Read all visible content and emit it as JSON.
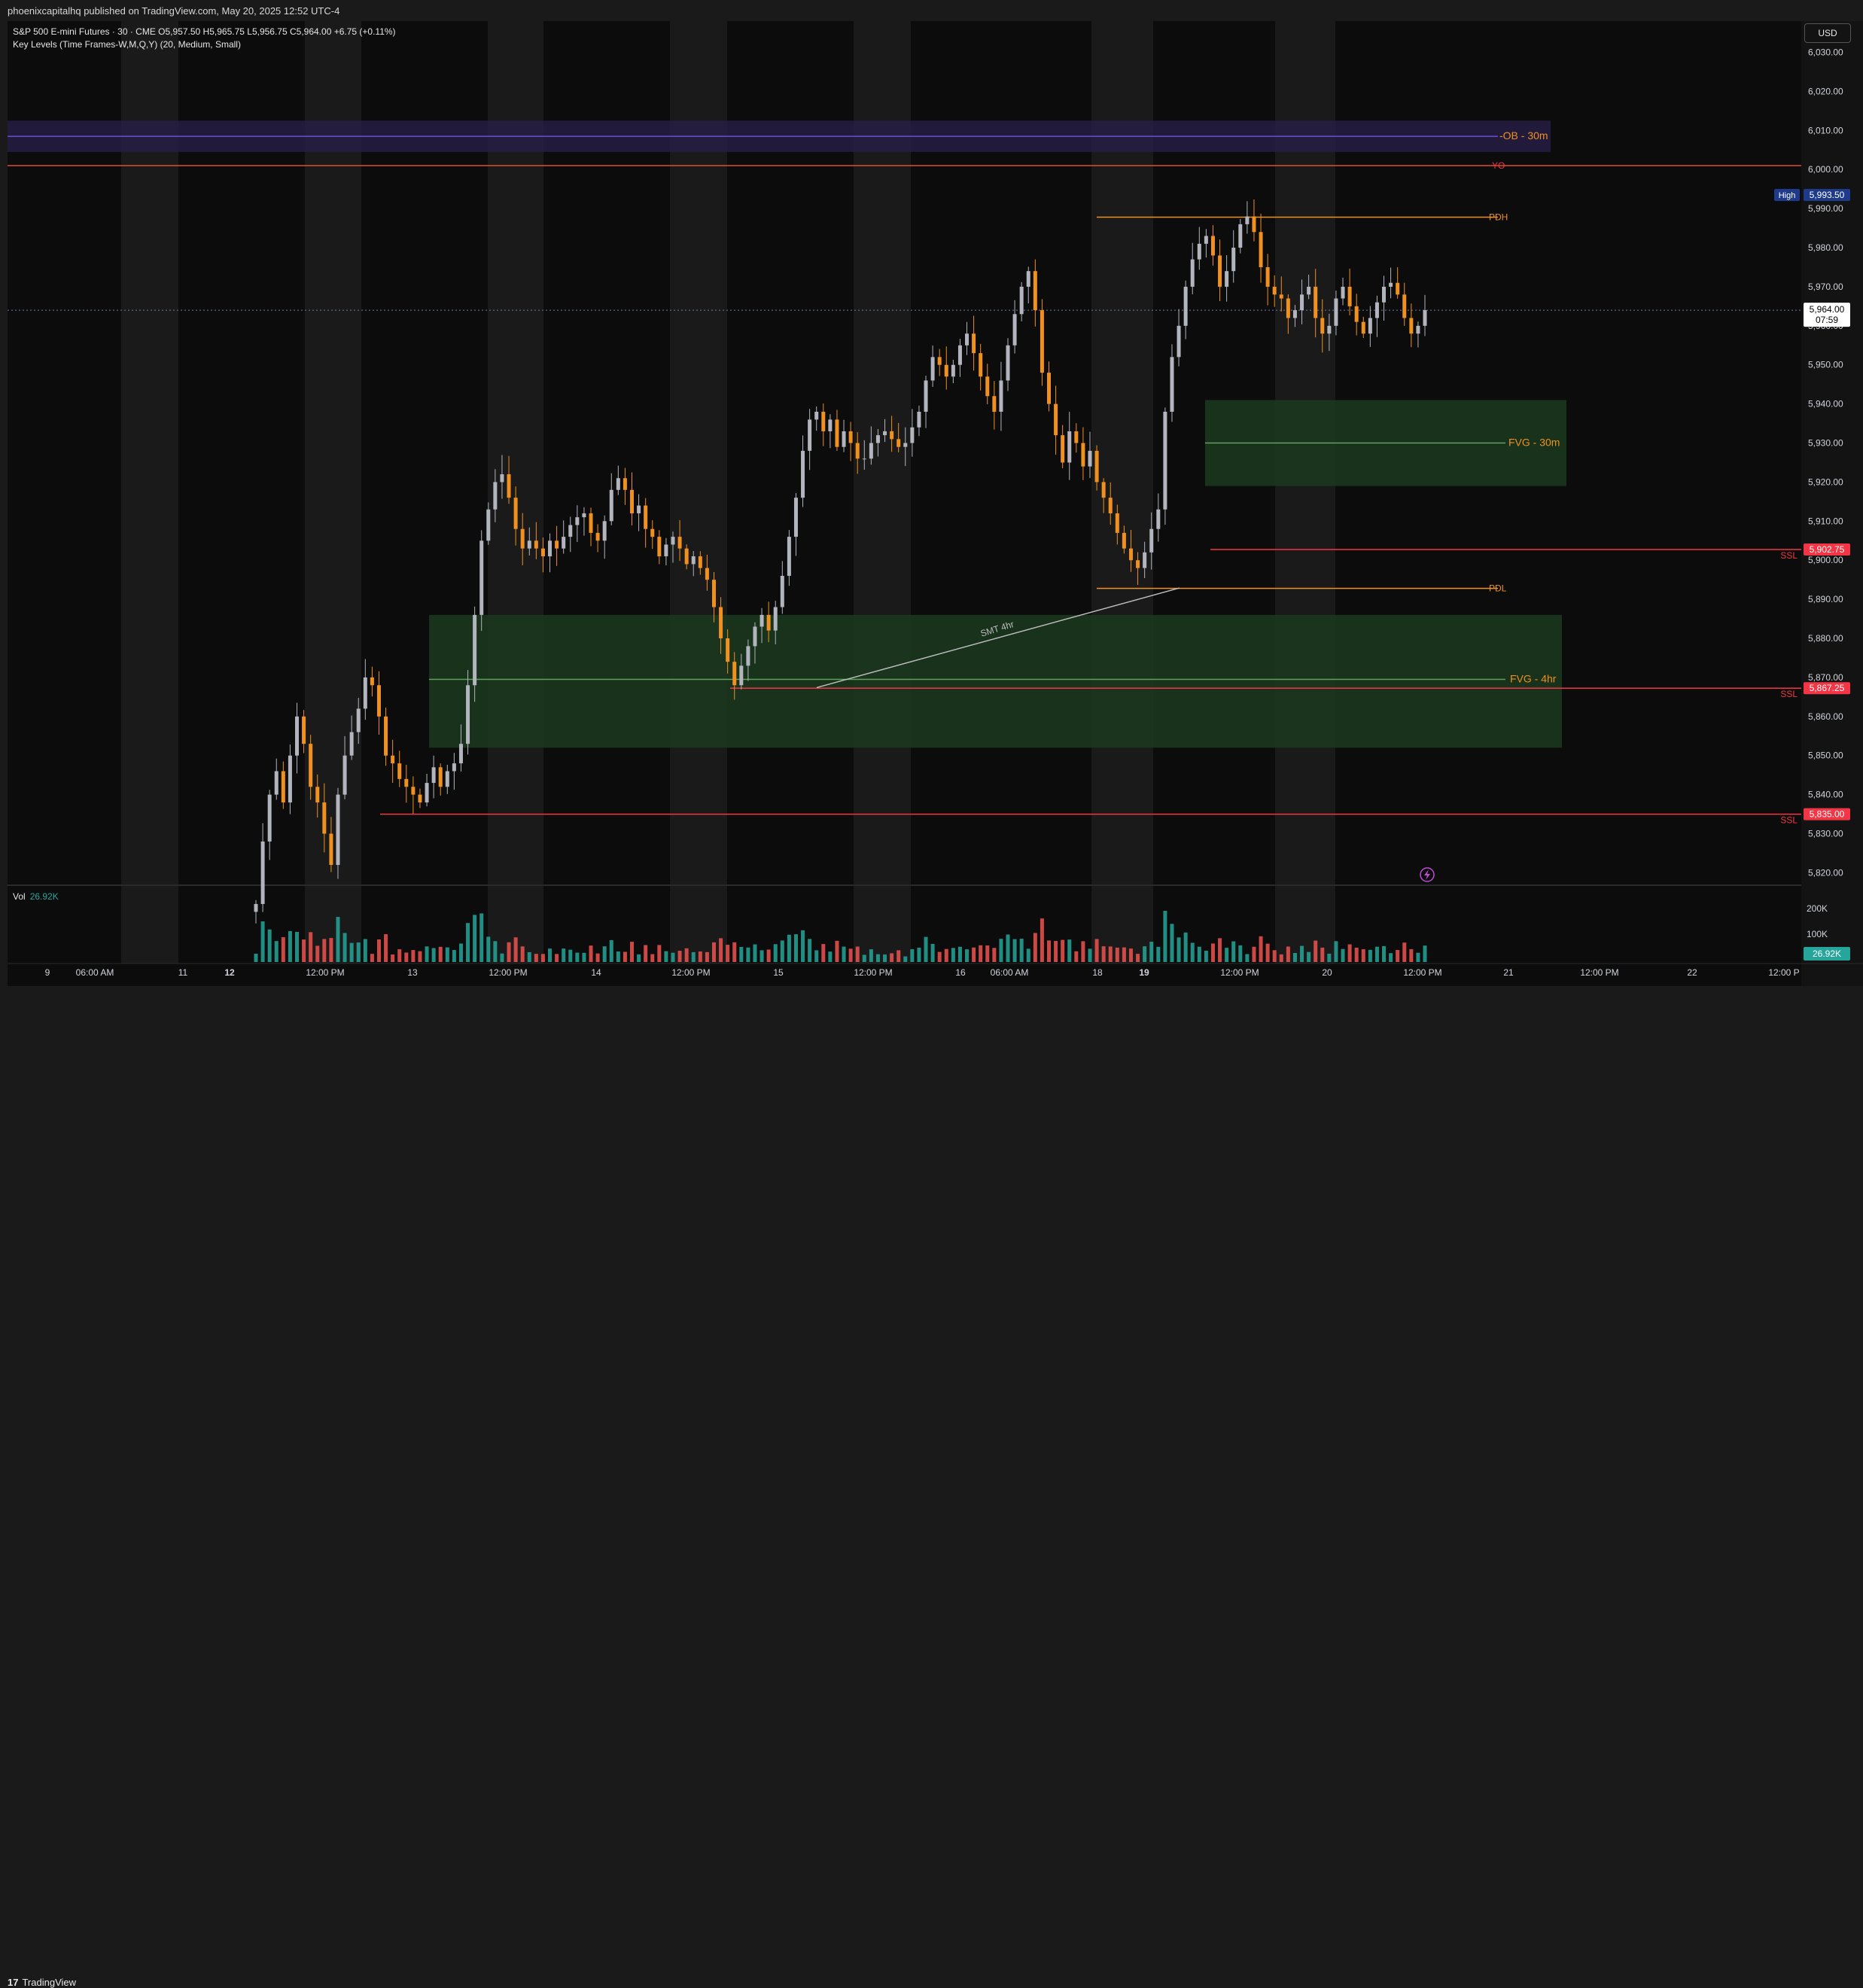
{
  "header": {
    "published_text": "phoenixcapitalhq published on TradingView.com, May 20, 2025 12:52 UTC-4"
  },
  "legend": {
    "line1": "S&P 500 E-mini Futures · 30 · CME  O5,957.50  H5,965.75  L5,956.75  C5,964.00  +6.75 (+0.11%)",
    "line2": "Key Levels (Time Frames-W,M,Q,Y) (20, Medium, Small)"
  },
  "currency_button": "USD",
  "volume": {
    "label": "Vol",
    "value": "26.92K",
    "axis_ticks": [
      "200K",
      "100K"
    ],
    "last_badge": "26.92K"
  },
  "brand": {
    "logo": "17",
    "name": "TradingView"
  },
  "colors": {
    "up_candle": "#b2b5be",
    "down_candle": "#f0901e",
    "vol_up": "#26a69a",
    "vol_down": "#ef5350",
    "fvg_zone": "#1b3a1f",
    "ob_zone": "#2a1f4a",
    "ssl": "#f23645",
    "orange_level": "#f0901e"
  },
  "chart_data": {
    "type": "candlestick",
    "instrument": "S&P 500 E-mini Futures",
    "timeframe": "30",
    "exchange": "CME",
    "ohlc_last": {
      "open": 5957.5,
      "high": 5965.75,
      "low": 5956.75,
      "close": 5964.0,
      "change": "+6.75 (+0.11%)"
    },
    "y_ticks": [
      6030,
      6020,
      6010,
      6000,
      5990,
      5980,
      5970,
      5960,
      5950,
      5940,
      5930,
      5920,
      5910,
      5900,
      5890,
      5880,
      5870,
      5860,
      5850,
      5840,
      5830,
      5820
    ],
    "y_tick_labels": [
      "6,030.00",
      "6,020.00",
      "6,010.00",
      "6,000.00",
      "5,990.00",
      "5,980.00",
      "5,970.00",
      "5,960.00",
      "5,950.00",
      "5,940.00",
      "5,930.00",
      "5,920.00",
      "5,910.00",
      "5,900.00",
      "5,890.00",
      "5,880.00",
      "5,870.00",
      "5,860.00",
      "5,850.00",
      "5,840.00",
      "5,830.00",
      "5,820.00"
    ],
    "ylim": [
      5817,
      6038
    ],
    "x_ticks": [
      "9",
      "06:00 AM",
      "11",
      "12",
      "12:00 PM",
      "13",
      "12:00 PM",
      "14",
      "12:00 PM",
      "15",
      "12:00 PM",
      "16",
      "06:00 AM",
      "18",
      "19",
      "12:00 PM",
      "20",
      "12:00 PM",
      "21",
      "12:00 PM",
      "22",
      "12:00 P"
    ],
    "bold_x_ticks": [
      "12",
      "19"
    ],
    "price_badges": [
      {
        "label": "High",
        "value": "5,993.50",
        "price": 5993.5
      },
      {
        "value": "5,964.00",
        "sub": "07:59",
        "price": 5964.0
      },
      {
        "value": "5,902.75",
        "price": 5902.75
      },
      {
        "value": "5,867.25",
        "price": 5867.25
      },
      {
        "value": "5,835.00",
        "price": 5835.0
      }
    ],
    "levels": [
      {
        "label": "-OB - 30m",
        "price": 6008.5
      },
      {
        "label": "YO",
        "price": 6001.0
      },
      {
        "label": "PDH",
        "price": 5987.8
      },
      {
        "label": "FVG - 30m",
        "price": 5930.0
      },
      {
        "label": "SSL",
        "price": 5902.75
      },
      {
        "label": "PDL",
        "price": 5892.8
      },
      {
        "label": "FVG - 4hr",
        "price": 5869.5
      },
      {
        "label": "SSL",
        "price": 5867.25
      },
      {
        "label": "SSL",
        "price": 5835.0
      }
    ],
    "zones": [
      {
        "name": "OB - 30m",
        "top": 6012.5,
        "bottom": 6004.5
      },
      {
        "name": "FVG - 30m",
        "top": 5941.0,
        "bottom": 5919.0
      },
      {
        "name": "FVG - 4hr",
        "top": 5886.0,
        "bottom": 5852.0
      }
    ],
    "annotations": [
      {
        "text": "SMT 4hr"
      }
    ],
    "close_series": [
      5812,
      5828,
      5840,
      5846,
      5838,
      5850,
      5860,
      5853,
      5842,
      5838,
      5830,
      5822,
      5840,
      5850,
      5856,
      5862,
      5870,
      5868,
      5860,
      5850,
      5848,
      5844,
      5842,
      5840,
      5838,
      5843,
      5847,
      5842,
      5846,
      5848,
      5853,
      5868,
      5886,
      5905,
      5913,
      5920,
      5922,
      5916,
      5908,
      5903,
      5905,
      5903,
      5901,
      5905,
      5903,
      5906,
      5909,
      5911,
      5912,
      5907,
      5905,
      5910,
      5918,
      5921,
      5918,
      5912,
      5914,
      5908,
      5906,
      5901,
      5904,
      5906,
      5903,
      5899,
      5901,
      5898,
      5895,
      5888,
      5880,
      5874,
      5868,
      5873,
      5878,
      5883,
      5886,
      5882,
      5888,
      5896,
      5906,
      5916,
      5928,
      5936,
      5938,
      5933,
      5936,
      5929,
      5933,
      5930,
      5926,
      5926,
      5930,
      5932,
      5933,
      5931,
      5929,
      5930,
      5934,
      5938,
      5946,
      5952,
      5950,
      5947,
      5950,
      5955,
      5958,
      5953,
      5947,
      5942,
      5938,
      5946,
      5955,
      5963,
      5970,
      5974,
      5964,
      5948,
      5940,
      5932,
      5925,
      5933,
      5930,
      5924,
      5928,
      5920,
      5916,
      5912,
      5907,
      5903,
      5900,
      5898,
      5902,
      5908,
      5913,
      5938,
      5952,
      5960,
      5970,
      5977,
      5981,
      5983,
      5978,
      5970,
      5974,
      5980,
      5986,
      5988,
      5984,
      5975,
      5970,
      5968,
      5967,
      5962,
      5964,
      5968,
      5970,
      5962,
      5958,
      5960,
      5967,
      5970,
      5965,
      5961,
      5958,
      5962,
      5966,
      5970,
      5971,
      5968,
      5962,
      5958,
      5960,
      5964
    ]
  }
}
